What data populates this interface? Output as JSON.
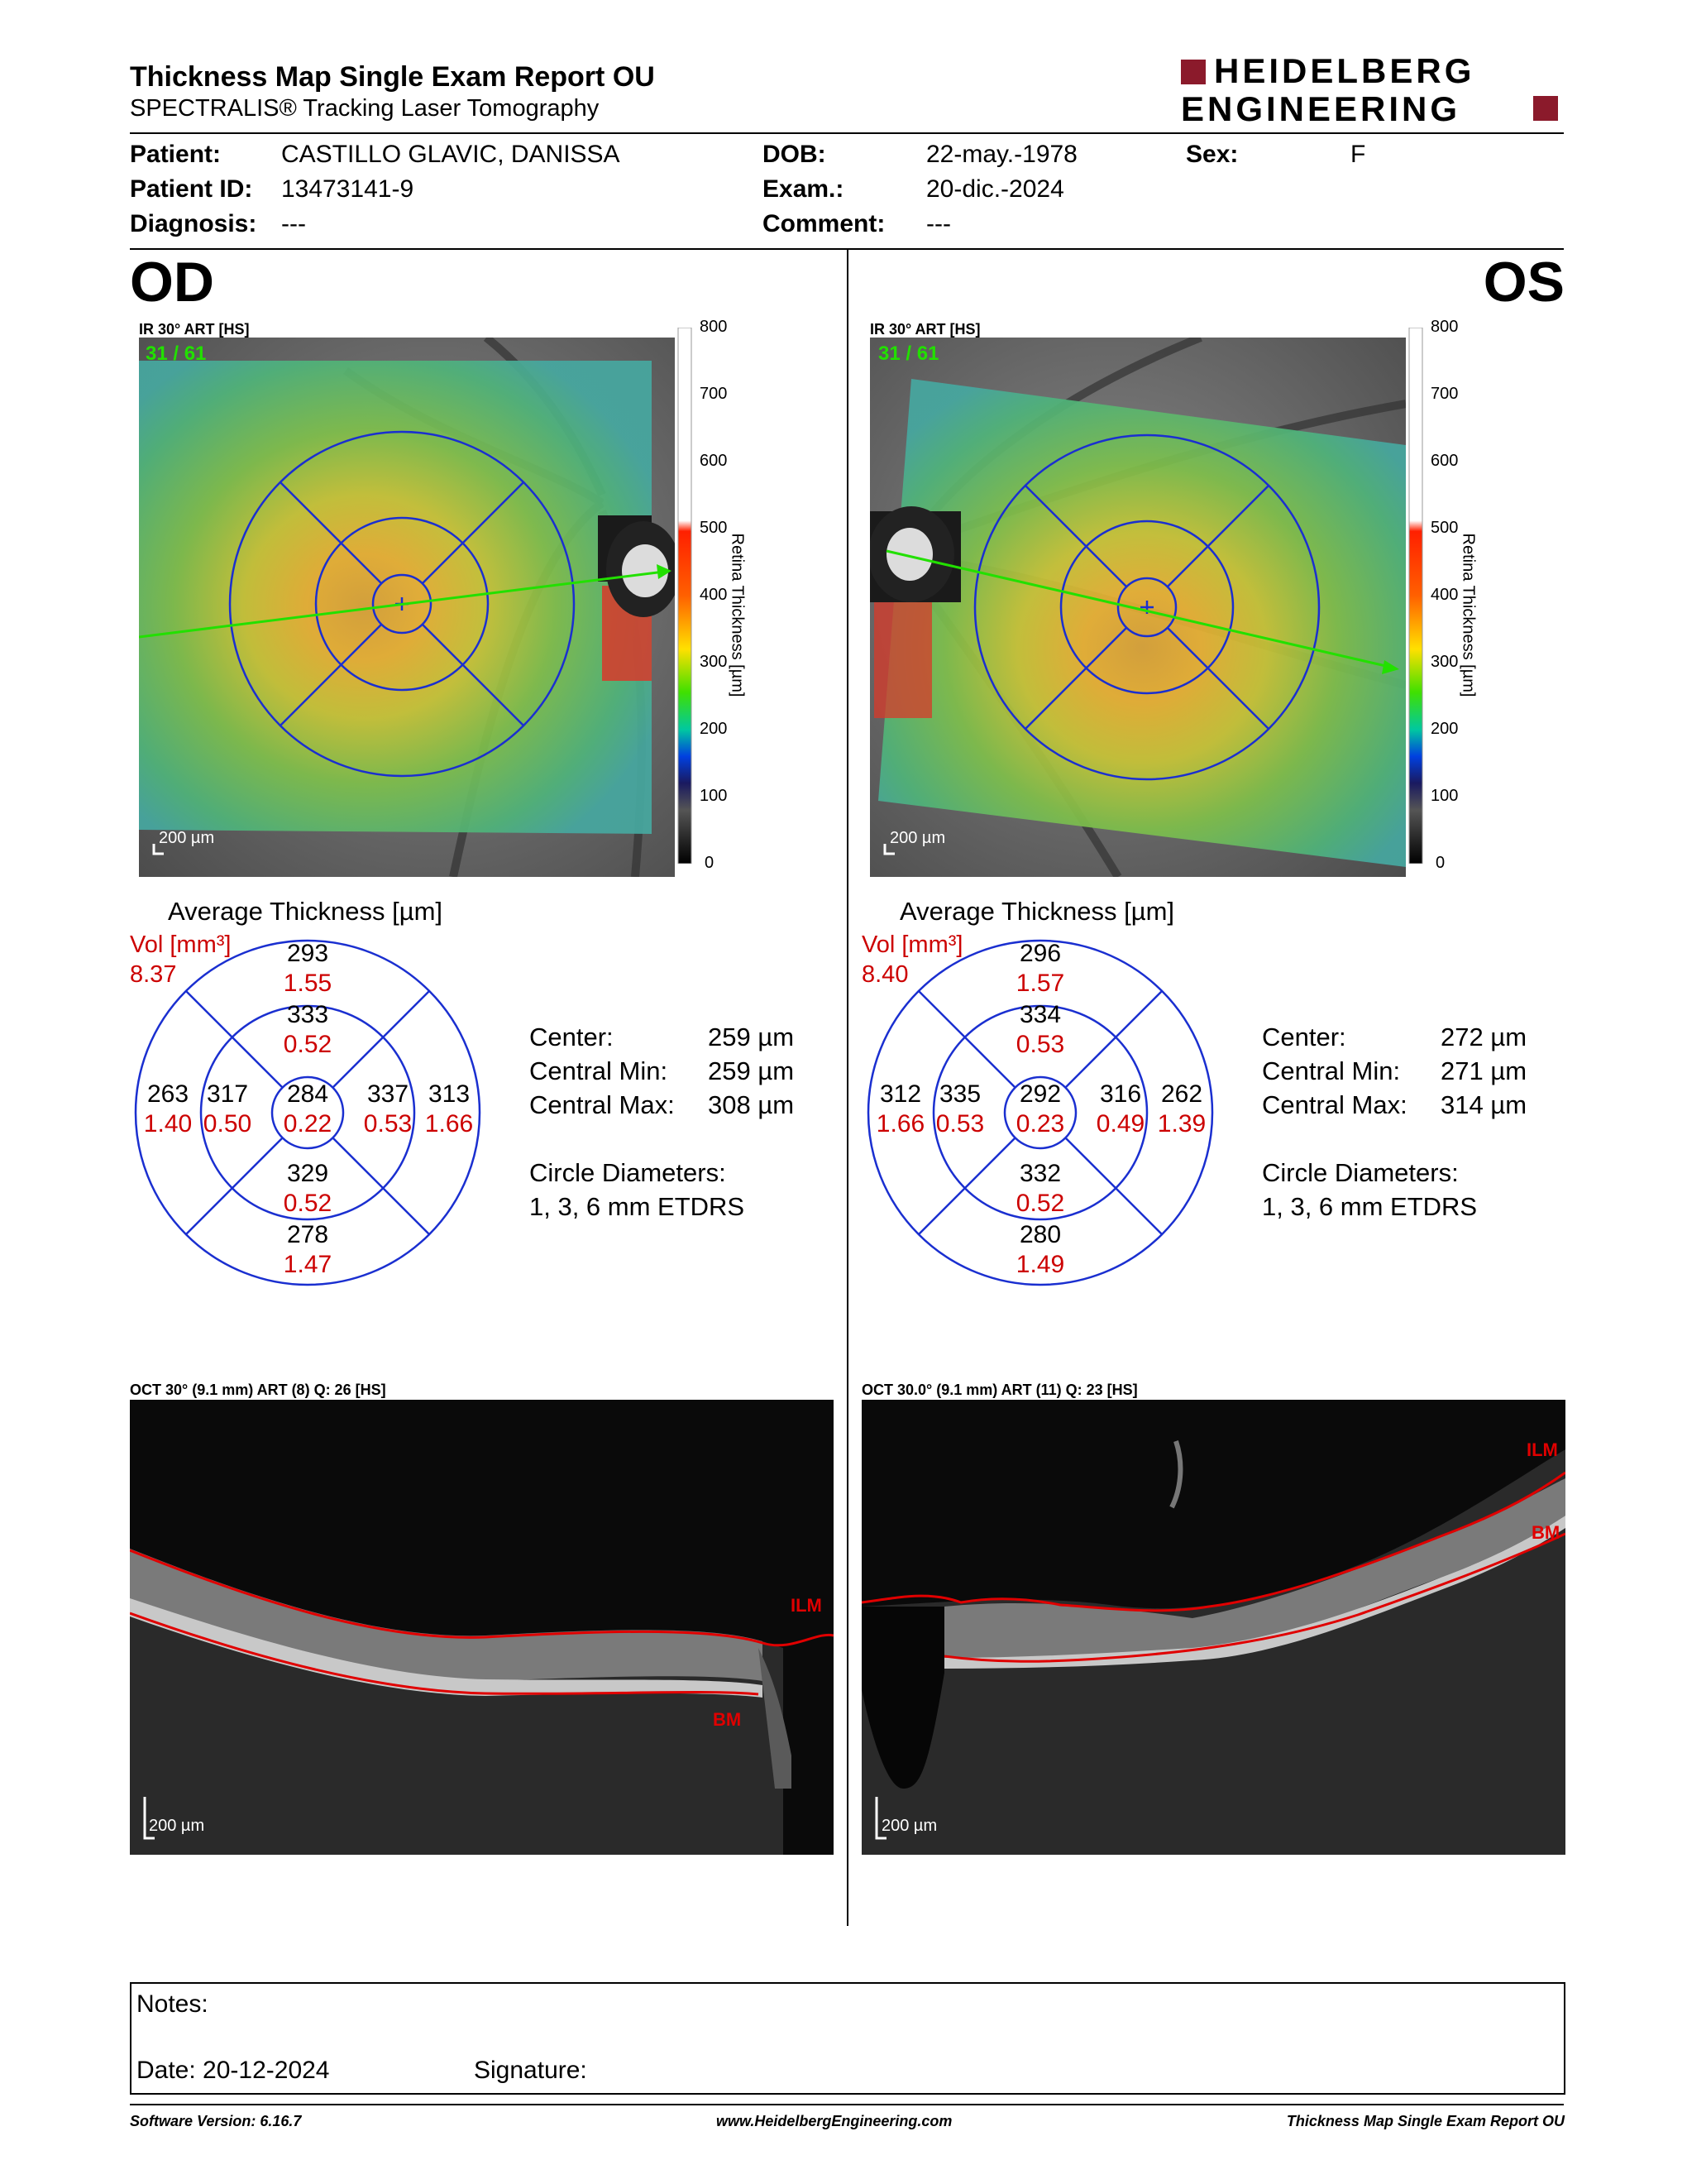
{
  "report": {
    "title": "Thickness Map Single Exam Report OU",
    "subtitle": "SPECTRALIS® Tracking Laser Tomography",
    "logo_line1": "HEIDELBERG",
    "logo_line2": "ENGINEERING",
    "brand_color": "#8b1a2b"
  },
  "patient": {
    "patient_label": "Patient:",
    "patient_value": "CASTILLO GLAVIC, DANISSA",
    "id_label": "Patient ID:",
    "id_value": "13473141-9",
    "diagnosis_label": "Diagnosis:",
    "diagnosis_value": "---",
    "dob_label": "DOB:",
    "dob_value": "22-may.-1978",
    "exam_label": "Exam.:",
    "exam_value": "20-dic.-2024",
    "comment_label": "Comment:",
    "comment_value": "---",
    "sex_label": "Sex:",
    "sex_value": "F"
  },
  "od": {
    "eye": "OD",
    "ir_label": "IR 30° ART [HS]",
    "frame": "31 / 61",
    "scale": "200 µm",
    "avg_title": "Average Thickness [µm]",
    "vol_label": "Vol [mm³]",
    "vol_value": "8.37",
    "sectors": {
      "center": [
        "284",
        "0.22"
      ],
      "inner_sup": [
        "333",
        "0.52"
      ],
      "inner_inf": [
        "329",
        "0.52"
      ],
      "inner_left": [
        "317",
        "0.50"
      ],
      "inner_right": [
        "337",
        "0.53"
      ],
      "outer_sup": [
        "293",
        "1.55"
      ],
      "outer_inf": [
        "278",
        "1.47"
      ],
      "outer_left": [
        "263",
        "1.40"
      ],
      "outer_right": [
        "313",
        "1.66"
      ]
    },
    "center_label": "Center:",
    "center_value": "259 µm",
    "cmin_label": "Central Min:",
    "cmin_value": "259 µm",
    "cmax_label": "Central Max:",
    "cmax_value": "308 µm",
    "diam_label": "Circle Diameters:",
    "diam_value": "1, 3, 6 mm ETDRS",
    "oct_label": "OCT 30° (9.1 mm) ART (8) Q: 26 [HS]",
    "ilm": "ILM",
    "bm": "BM"
  },
  "os": {
    "eye": "OS",
    "ir_label": "IR 30° ART [HS]",
    "frame": "31 / 61",
    "scale": "200 µm",
    "avg_title": "Average Thickness [µm]",
    "vol_label": "Vol [mm³]",
    "vol_value": "8.40",
    "sectors": {
      "center": [
        "292",
        "0.23"
      ],
      "inner_sup": [
        "334",
        "0.53"
      ],
      "inner_inf": [
        "332",
        "0.52"
      ],
      "inner_left": [
        "335",
        "0.53"
      ],
      "inner_right": [
        "316",
        "0.49"
      ],
      "outer_sup": [
        "296",
        "1.57"
      ],
      "outer_inf": [
        "280",
        "1.49"
      ],
      "outer_left": [
        "312",
        "1.66"
      ],
      "outer_right": [
        "262",
        "1.39"
      ]
    },
    "center_label": "Center:",
    "center_value": "272 µm",
    "cmin_label": "Central Min:",
    "cmin_value": "271 µm",
    "cmax_label": "Central Max:",
    "cmax_value": "314 µm",
    "diam_label": "Circle Diameters:",
    "diam_value": "1, 3, 6 mm ETDRS",
    "oct_label": "OCT 30.0° (9.1 mm) ART (11) Q: 23 [HS]",
    "ilm": "ILM",
    "bm": "BM"
  },
  "colorbar": {
    "ticks": [
      "800",
      "700",
      "600",
      "500",
      "400",
      "300",
      "200",
      "100",
      "0"
    ],
    "title": "Retina Thickness [µm]"
  },
  "notes": {
    "notes_label": "Notes:",
    "date_label": "Date: 20-12-2024",
    "signature_label": "Signature:"
  },
  "footer": {
    "software": "Software Version: 6.16.7",
    "website": "www.HeidelbergEngineering.com",
    "report_name": "Thickness Map Single Exam Report OU"
  }
}
